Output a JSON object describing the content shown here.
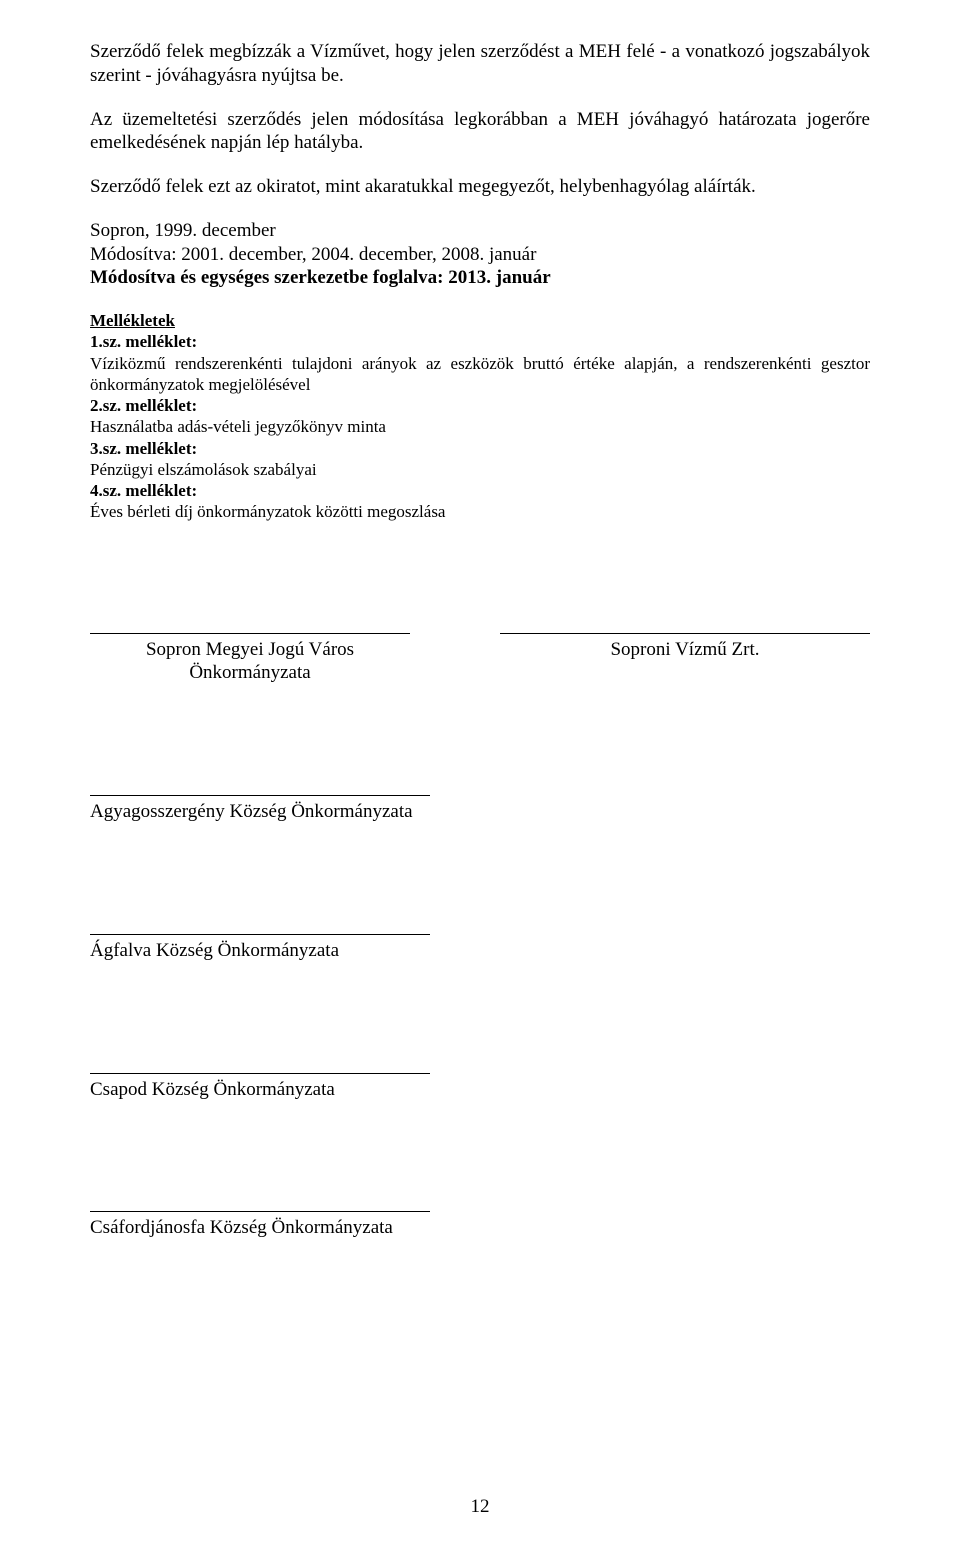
{
  "paragraph1": "Szerződő felek megbízzák a Vízművet, hogy jelen szerződést a MEH felé - a vonatkozó jogszabályok szerint - jóváhagyásra nyújtsa be.",
  "paragraph2": "Az üzemeltetési szerződés jelen módosítása legkorábban a MEH jóváhagyó határozata jogerőre emelkedésének napján lép hatályba.",
  "paragraph3": "Szerződő felek ezt az okiratot, mint akaratukkal megegyezőt, helybenhagyólag aláírták.",
  "dates": {
    "line1": "Sopron, 1999. december",
    "line2": "Módosítva: 2001. december, 2004. december, 2008. január",
    "line3_bold": "Módosítva és egységes szerkezetbe foglalva: 2013. január"
  },
  "attachments": {
    "heading": "Mellékletek",
    "items": [
      {
        "label": "1.sz. melléklet:",
        "text": "Víziközmű rendszerenkénti tulajdoni arányok az eszközök bruttó értéke alapján, a rendszerenkénti gesztor önkormányzatok megjelölésével"
      },
      {
        "label": "2.sz. melléklet:",
        "text": "Használatba adás-vételi jegyzőkönyv minta"
      },
      {
        "label": "3.sz. melléklet:",
        "text": "Pénzügyi elszámolások szabályai"
      },
      {
        "label": "4.sz. melléklet:",
        "text": "Éves bérleti díj önkormányzatok közötti megoszlása"
      }
    ]
  },
  "signatures": {
    "topLeft": {
      "line1": "Sopron Megyei Jogú Város",
      "line2": "Önkormányzata"
    },
    "topRight": {
      "line1": "Soproni Vízmű Zrt."
    },
    "blocks": [
      "Agyagosszergény Község Önkormányzata",
      "Ágfalva Község Önkormányzata",
      "Csapod Község Önkormányzata",
      "Csáfordjánosfa Község Önkormányzata"
    ]
  },
  "pageNumber": "12"
}
